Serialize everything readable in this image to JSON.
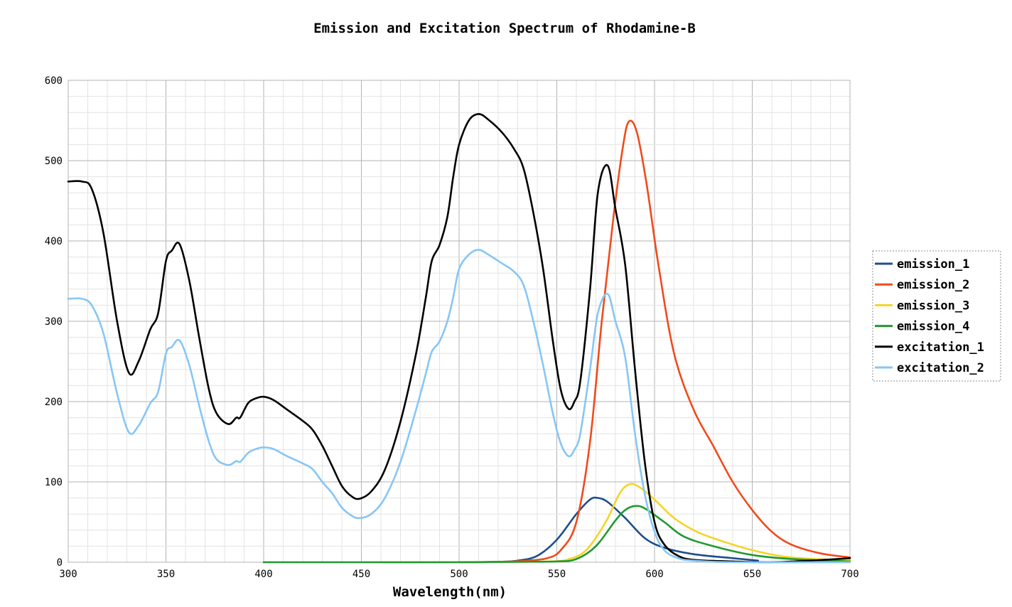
{
  "chart_data": {
    "type": "line",
    "title": "Emission and Excitation Spectrum of Rhodamine-B",
    "xlabel": "Wavelength(nm)",
    "ylabel": "",
    "xlim": [
      300,
      700
    ],
    "ylim": [
      0,
      600
    ],
    "x_ticks": [
      300,
      350,
      400,
      450,
      500,
      550,
      600,
      650,
      700
    ],
    "y_ticks": [
      0,
      100,
      200,
      300,
      400,
      500,
      600
    ],
    "grid": true,
    "legend_position": "right",
    "series": [
      {
        "name": "emission_1",
        "color": "#1f4e8c",
        "points": [
          [
            500,
            0
          ],
          [
            520,
            0.5
          ],
          [
            530,
            2
          ],
          [
            540,
            8
          ],
          [
            550,
            28
          ],
          [
            560,
            60
          ],
          [
            567,
            78
          ],
          [
            571,
            80
          ],
          [
            576,
            75
          ],
          [
            585,
            55
          ],
          [
            595,
            30
          ],
          [
            605,
            18
          ],
          [
            620,
            10
          ],
          [
            640,
            5
          ],
          [
            653,
            2
          ]
        ]
      },
      {
        "name": "emission_2",
        "color": "#f24a1b",
        "points": [
          [
            500,
            0
          ],
          [
            520,
            0.5
          ],
          [
            535,
            2
          ],
          [
            545,
            5
          ],
          [
            552,
            15
          ],
          [
            560,
            50
          ],
          [
            567,
            150
          ],
          [
            573,
            300
          ],
          [
            579,
            430
          ],
          [
            584,
            520
          ],
          [
            587,
            549
          ],
          [
            591,
            535
          ],
          [
            596,
            470
          ],
          [
            602,
            370
          ],
          [
            610,
            260
          ],
          [
            620,
            190
          ],
          [
            630,
            145
          ],
          [
            640,
            100
          ],
          [
            650,
            65
          ],
          [
            660,
            38
          ],
          [
            670,
            22
          ],
          [
            685,
            11
          ],
          [
            700,
            6
          ]
        ]
      },
      {
        "name": "emission_3",
        "color": "#f5d428",
        "points": [
          [
            460,
            0
          ],
          [
            500,
            0
          ],
          [
            530,
            0.5
          ],
          [
            545,
            1
          ],
          [
            555,
            3
          ],
          [
            565,
            15
          ],
          [
            575,
            50
          ],
          [
            582,
            85
          ],
          [
            587,
            97
          ],
          [
            592,
            94
          ],
          [
            600,
            78
          ],
          [
            610,
            55
          ],
          [
            620,
            40
          ],
          [
            630,
            30
          ],
          [
            650,
            15
          ],
          [
            670,
            6
          ],
          [
            700,
            2
          ]
        ]
      },
      {
        "name": "emission_4",
        "color": "#1f9a2f",
        "points": [
          [
            400,
            0
          ],
          [
            450,
            0
          ],
          [
            500,
            0
          ],
          [
            530,
            0.5
          ],
          [
            550,
            1
          ],
          [
            560,
            4
          ],
          [
            570,
            20
          ],
          [
            580,
            52
          ],
          [
            585,
            65
          ],
          [
            590,
            70
          ],
          [
            595,
            67
          ],
          [
            605,
            50
          ],
          [
            615,
            32
          ],
          [
            630,
            20
          ],
          [
            650,
            9
          ],
          [
            670,
            4
          ],
          [
            700,
            1
          ]
        ]
      },
      {
        "name": "excitation_1",
        "color": "#000000",
        "points": [
          [
            300,
            474
          ],
          [
            307,
            474
          ],
          [
            312,
            465
          ],
          [
            318,
            410
          ],
          [
            325,
            300
          ],
          [
            331,
            236
          ],
          [
            336,
            250
          ],
          [
            342,
            290
          ],
          [
            346,
            310
          ],
          [
            350,
            375
          ],
          [
            353,
            388
          ],
          [
            357,
            396
          ],
          [
            362,
            350
          ],
          [
            367,
            280
          ],
          [
            372,
            215
          ],
          [
            376,
            185
          ],
          [
            382,
            172
          ],
          [
            386,
            180
          ],
          [
            388,
            180
          ],
          [
            392,
            198
          ],
          [
            396,
            204
          ],
          [
            400,
            206
          ],
          [
            405,
            202
          ],
          [
            412,
            190
          ],
          [
            420,
            176
          ],
          [
            425,
            165
          ],
          [
            430,
            145
          ],
          [
            435,
            120
          ],
          [
            440,
            95
          ],
          [
            445,
            82
          ],
          [
            449,
            79
          ],
          [
            455,
            88
          ],
          [
            462,
            115
          ],
          [
            470,
            175
          ],
          [
            478,
            260
          ],
          [
            483,
            330
          ],
          [
            486,
            375
          ],
          [
            490,
            395
          ],
          [
            494,
            430
          ],
          [
            497,
            480
          ],
          [
            500,
            520
          ],
          [
            505,
            550
          ],
          [
            510,
            558
          ],
          [
            515,
            551
          ],
          [
            522,
            535
          ],
          [
            528,
            515
          ],
          [
            533,
            490
          ],
          [
            538,
            435
          ],
          [
            543,
            365
          ],
          [
            548,
            275
          ],
          [
            552,
            215
          ],
          [
            556,
            191
          ],
          [
            559,
            200
          ],
          [
            562,
            225
          ],
          [
            567,
            340
          ],
          [
            571,
            460
          ],
          [
            576,
            494
          ],
          [
            580,
            440
          ],
          [
            585,
            370
          ],
          [
            590,
            240
          ],
          [
            595,
            125
          ],
          [
            600,
            50
          ],
          [
            605,
            22
          ],
          [
            612,
            8
          ],
          [
            620,
            3
          ],
          [
            640,
            1
          ],
          [
            660,
            0
          ],
          [
            680,
            2
          ],
          [
            700,
            5
          ]
        ]
      },
      {
        "name": "excitation_2",
        "color": "#87c6f5",
        "points": [
          [
            300,
            328
          ],
          [
            307,
            328
          ],
          [
            312,
            320
          ],
          [
            318,
            285
          ],
          [
            325,
            210
          ],
          [
            331,
            162
          ],
          [
            336,
            170
          ],
          [
            342,
            198
          ],
          [
            346,
            212
          ],
          [
            350,
            260
          ],
          [
            353,
            268
          ],
          [
            357,
            276
          ],
          [
            362,
            245
          ],
          [
            367,
            195
          ],
          [
            372,
            150
          ],
          [
            376,
            128
          ],
          [
            382,
            121
          ],
          [
            386,
            126
          ],
          [
            388,
            125
          ],
          [
            392,
            136
          ],
          [
            396,
            141
          ],
          [
            400,
            143
          ],
          [
            405,
            141
          ],
          [
            412,
            132
          ],
          [
            420,
            123
          ],
          [
            425,
            116
          ],
          [
            430,
            100
          ],
          [
            435,
            86
          ],
          [
            440,
            68
          ],
          [
            445,
            58
          ],
          [
            449,
            55
          ],
          [
            455,
            60
          ],
          [
            462,
            80
          ],
          [
            470,
            125
          ],
          [
            478,
            190
          ],
          [
            483,
            235
          ],
          [
            486,
            262
          ],
          [
            490,
            275
          ],
          [
            494,
            300
          ],
          [
            497,
            330
          ],
          [
            500,
            365
          ],
          [
            505,
            383
          ],
          [
            510,
            389
          ],
          [
            515,
            383
          ],
          [
            522,
            372
          ],
          [
            528,
            362
          ],
          [
            533,
            345
          ],
          [
            538,
            300
          ],
          [
            543,
            245
          ],
          [
            548,
            185
          ],
          [
            552,
            148
          ],
          [
            556,
            132
          ],
          [
            559,
            140
          ],
          [
            562,
            160
          ],
          [
            567,
            240
          ],
          [
            571,
            310
          ],
          [
            576,
            334
          ],
          [
            580,
            300
          ],
          [
            585,
            255
          ],
          [
            590,
            160
          ],
          [
            595,
            85
          ],
          [
            600,
            38
          ],
          [
            605,
            15
          ],
          [
            612,
            5
          ],
          [
            620,
            2
          ],
          [
            640,
            0
          ],
          [
            700,
            0
          ]
        ]
      }
    ]
  }
}
